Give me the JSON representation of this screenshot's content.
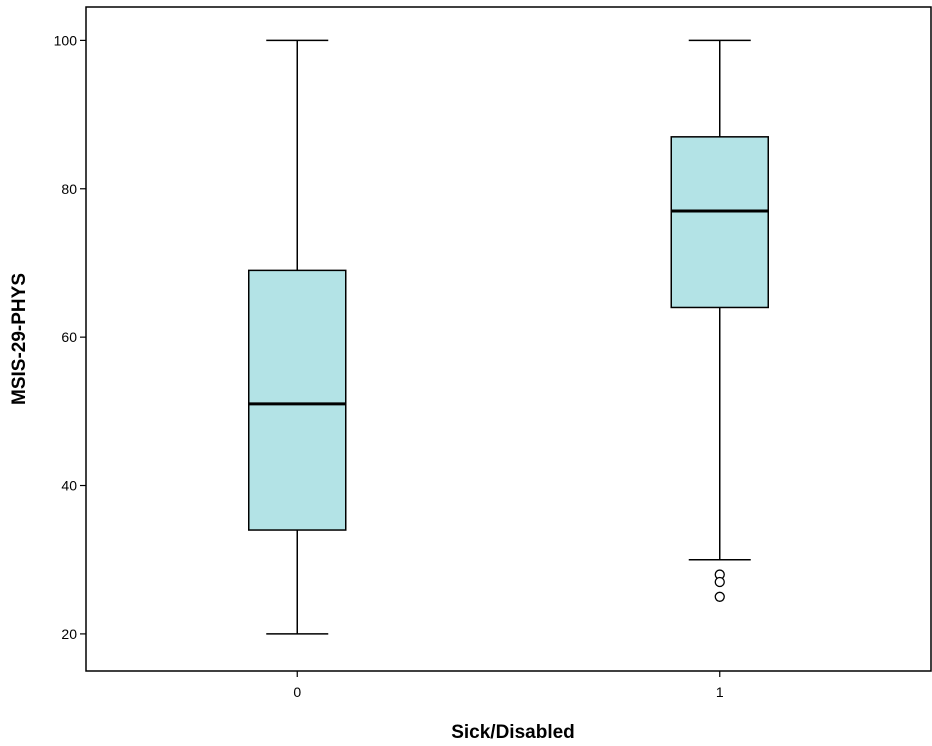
{
  "chart_data": {
    "type": "box",
    "title": "",
    "xlabel": "Sick/Disabled",
    "ylabel": "MSIS-29-PHYS",
    "categories": [
      "0",
      "1"
    ],
    "ylim": [
      15,
      104.5
    ],
    "yticks": [
      "20",
      "40",
      "60",
      "80",
      "100"
    ],
    "grid": false,
    "box_fill": "#b3e3e6",
    "boxes": [
      {
        "category": "0",
        "min": 20,
        "q1": 34,
        "median": 51,
        "q3": 69,
        "max": 100,
        "outliers": []
      },
      {
        "category": "1",
        "min": 30,
        "q1": 64,
        "median": 77,
        "q3": 87,
        "max": 100,
        "outliers": [
          28,
          27,
          25
        ]
      }
    ]
  }
}
